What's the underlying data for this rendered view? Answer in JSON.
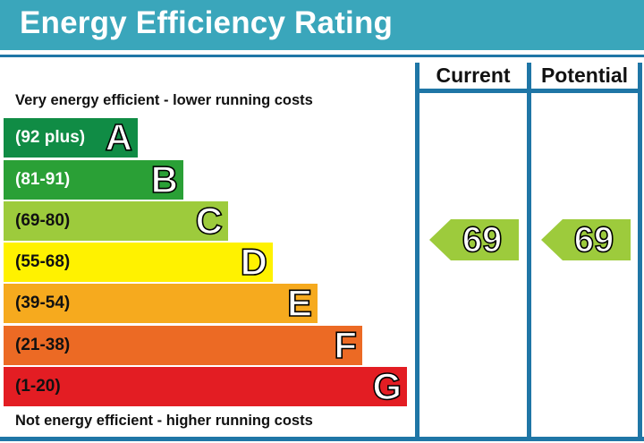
{
  "title": "Energy Efficiency Rating",
  "columns": {
    "current": "Current",
    "potential": "Potential"
  },
  "notes": {
    "top": "Very energy efficient - lower running costs",
    "bottom": "Not energy efficient - higher running costs"
  },
  "bands": [
    {
      "range": "(92 plus)",
      "letter": "A",
      "color": "#108c45",
      "text_color": "#ffffff"
    },
    {
      "range": "(81-91)",
      "letter": "B",
      "color": "#2aa036",
      "text_color": "#ffffff"
    },
    {
      "range": "(69-80)",
      "letter": "C",
      "color": "#9dcb3c",
      "text_color": "#111111"
    },
    {
      "range": "(55-68)",
      "letter": "D",
      "color": "#fff200",
      "text_color": "#111111"
    },
    {
      "range": "(39-54)",
      "letter": "E",
      "color": "#f6aa1e",
      "text_color": "#111111"
    },
    {
      "range": "(21-38)",
      "letter": "F",
      "color": "#ec6a24",
      "text_color": "#111111"
    },
    {
      "range": "(1-20)",
      "letter": "G",
      "color": "#e31d23",
      "text_color": "#111111"
    }
  ],
  "ratings": {
    "current": {
      "value": "69",
      "color": "#9dcb3c"
    },
    "potential": {
      "value": "69",
      "color": "#9dcb3c"
    }
  },
  "colors": {
    "header": "#3aa6bb",
    "rules": "#1f76a6"
  }
}
